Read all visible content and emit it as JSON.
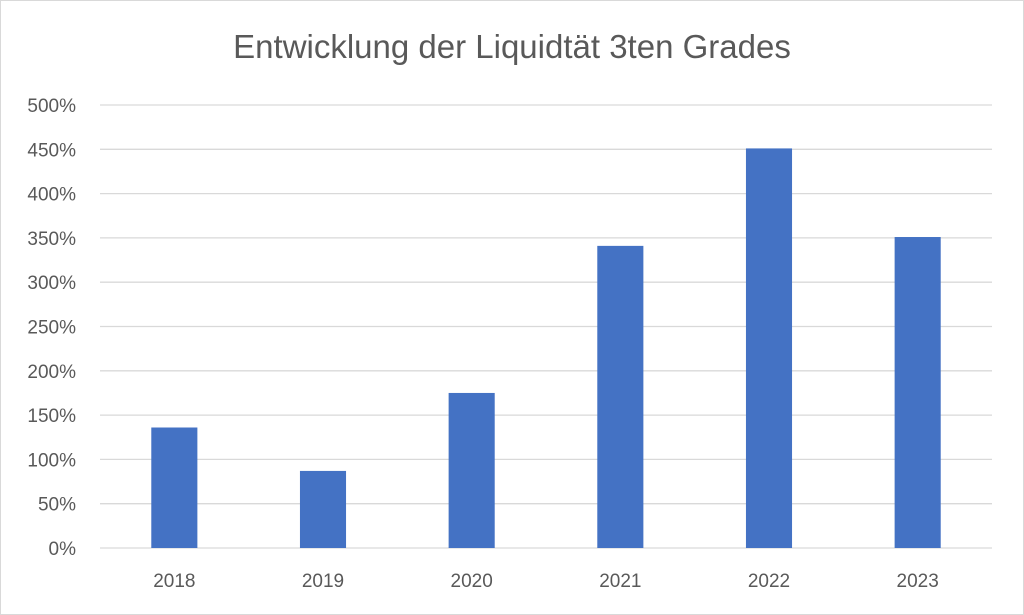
{
  "chart_data": {
    "type": "bar",
    "title": "Entwicklung der Liquidtät 3ten Grades",
    "xlabel": "",
    "ylabel": "",
    "categories": [
      "2018",
      "2019",
      "2020",
      "2021",
      "2022",
      "2023"
    ],
    "values": [
      136,
      87,
      175,
      341,
      451,
      351
    ],
    "unit": "%",
    "ylim": [
      0,
      500
    ],
    "yticks": [
      "0%",
      "50%",
      "100%",
      "150%",
      "200%",
      "250%",
      "300%",
      "350%",
      "400%",
      "450%",
      "500%"
    ],
    "grid": true,
    "legend": "none",
    "bar_color": "#4472C4",
    "grid_color": "#d9d9d9",
    "text_color": "#595959"
  }
}
